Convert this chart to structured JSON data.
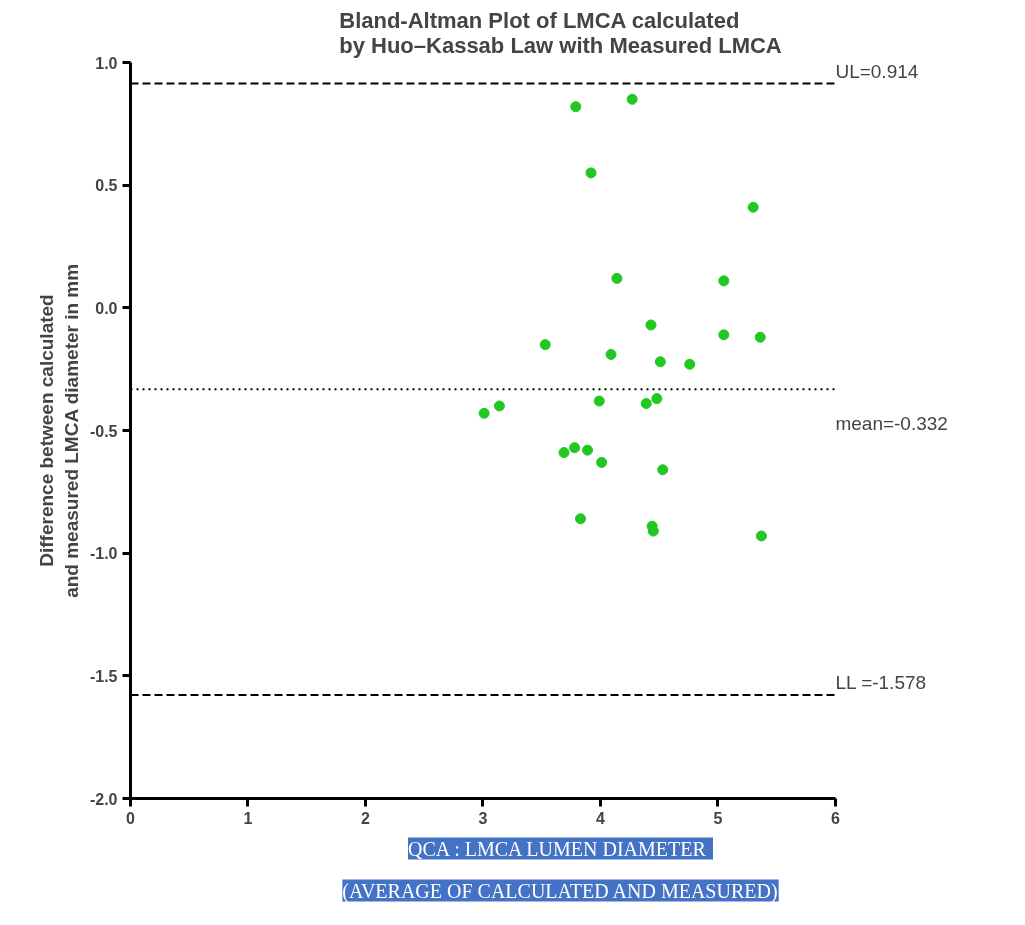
{
  "chart_data": {
    "type": "scatter",
    "title": "Bland-Altman Plot of LMCA calculated\nby Huo–Kassab Law with Measured LMCA",
    "xlabel": "QCA : LMCA  LUMEN DIAMETER\n(AVERAGE OF CALCULATED AND MEASURED)",
    "ylabel": "Difference between calculated\nand measured LMCA diameter in mm",
    "x": [
      3.01,
      3.14,
      3.53,
      3.69,
      3.78,
      3.89,
      3.83,
      3.79,
      3.92,
      3.99,
      4.01,
      4.09,
      4.14,
      4.27,
      4.43,
      4.39,
      4.48,
      4.51,
      4.53,
      4.44,
      4.45,
      4.76,
      5.05,
      5.05,
      5.3,
      5.36,
      5.37
    ],
    "series": [
      {
        "color": "#22c822",
        "values": [
          -0.43,
          -0.4,
          -0.15,
          -0.59,
          -0.57,
          -0.58,
          -0.86,
          0.82,
          0.55,
          -0.38,
          -0.63,
          -0.19,
          0.12,
          0.85,
          -0.07,
          -0.39,
          -0.37,
          -0.22,
          -0.66,
          -0.89,
          -0.91,
          -0.23,
          0.11,
          -0.11,
          0.41,
          -0.12,
          -0.93
        ]
      }
    ],
    "xlim": [
      0,
      6
    ],
    "xticks": [
      0,
      1,
      2,
      3,
      4,
      5,
      6
    ],
    "ylim": [
      -2.0,
      1.0
    ],
    "yticks": [
      {
        "value": -2,
        "label": "-2.0"
      },
      {
        "value": -1.5,
        "label": "-1.5"
      },
      {
        "value": -1,
        "label": "-1.0"
      },
      {
        "value": -0.5,
        "label": "-0.5"
      },
      {
        "value": 0,
        "label": "0.0"
      },
      {
        "value": 0.5,
        "label": "0.5"
      },
      {
        "value": 1,
        "label": "1.0"
      }
    ],
    "ref_lines": [
      {
        "axis": "y",
        "value": 0.914,
        "label": "UL=0.914",
        "line_style": "dashed",
        "color": "#000000"
      },
      {
        "axis": "y",
        "value": -0.332,
        "label": "mean=-0.332",
        "line_style": "dotted",
        "color": "#000000"
      },
      {
        "axis": "y",
        "value": -1.578,
        "label": "LL =-1.578",
        "line_style": "dashed",
        "color": "#000000"
      }
    ],
    "marker": "circle",
    "grid": false
  }
}
